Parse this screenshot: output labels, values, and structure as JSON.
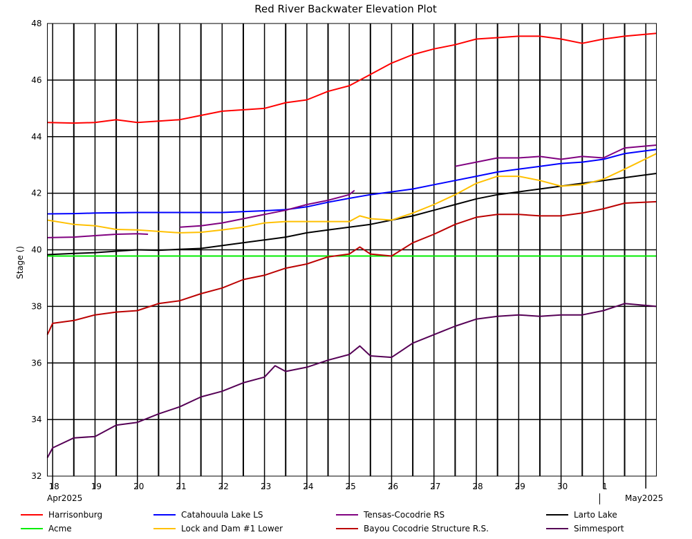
{
  "chart_data": {
    "type": "line",
    "title": "Red River Backwater Elevation Plot",
    "xlabel": "",
    "ylabel": "Stage ()",
    "ylim": [
      32,
      48
    ],
    "yticks": [
      32,
      34,
      36,
      38,
      40,
      42,
      44,
      46,
      48
    ],
    "xlim": [
      "2025-04-17T21:00",
      "2025-05-02T06:00"
    ],
    "x_day_ticks": [
      "18",
      "19",
      "20",
      "21",
      "22",
      "23",
      "24",
      "25",
      "26",
      "27",
      "28",
      "29",
      "30",
      "1"
    ],
    "x_month_labels": [
      "Apr2025",
      "May2025"
    ],
    "grid": true,
    "legend_position": "bottom",
    "series": [
      {
        "name": "Harrisonburg",
        "color": "#ff0000",
        "x": [
          "2025-04-17T21:00",
          "2025-04-18T12:00",
          "2025-04-19T00:00",
          "2025-04-19T12:00",
          "2025-04-20T00:00",
          "2025-04-20T12:00",
          "2025-04-21T00:00",
          "2025-04-21T12:00",
          "2025-04-22T00:00",
          "2025-04-22T12:00",
          "2025-04-23T00:00",
          "2025-04-23T12:00",
          "2025-04-24T00:00",
          "2025-04-24T12:00",
          "2025-04-25T00:00",
          "2025-04-25T12:00",
          "2025-04-26T00:00",
          "2025-04-26T12:00",
          "2025-04-27T00:00",
          "2025-04-27T12:00",
          "2025-04-28T00:00",
          "2025-04-28T12:00",
          "2025-04-29T00:00",
          "2025-04-29T12:00",
          "2025-04-30T00:00",
          "2025-04-30T12:00",
          "2025-05-01T00:00",
          "2025-05-01T12:00",
          "2025-05-02T06:00"
        ],
        "y": [
          44.5,
          44.48,
          44.5,
          44.6,
          44.5,
          44.55,
          44.6,
          44.75,
          44.9,
          44.95,
          45.0,
          45.2,
          45.3,
          45.6,
          45.8,
          46.2,
          46.6,
          46.9,
          47.1,
          47.25,
          47.45,
          47.5,
          47.55,
          47.55,
          47.45,
          47.3,
          47.45,
          47.55,
          47.65
        ]
      },
      {
        "name": "Catahouula Lake LS",
        "color": "#0000ff",
        "x": [
          "2025-04-17T21:00",
          "2025-04-18T12:00",
          "2025-04-19T00:00",
          "2025-04-20T00:00",
          "2025-04-21T00:00",
          "2025-04-22T00:00",
          "2025-04-22T12:00",
          "2025-04-23T00:00",
          "2025-04-23T12:00",
          "2025-04-24T00:00",
          "2025-04-24T12:00",
          "2025-04-25T00:00",
          "2025-04-25T12:00",
          "2025-04-26T00:00",
          "2025-04-26T12:00",
          "2025-04-27T00:00",
          "2025-04-27T12:00",
          "2025-04-28T00:00",
          "2025-04-28T12:00",
          "2025-04-29T00:00",
          "2025-04-29T12:00",
          "2025-04-30T00:00",
          "2025-04-30T12:00",
          "2025-05-01T00:00",
          "2025-05-01T12:00",
          "2025-05-02T06:00"
        ],
        "y": [
          41.27,
          41.28,
          41.3,
          41.32,
          41.32,
          41.32,
          41.35,
          41.38,
          41.42,
          41.52,
          41.68,
          41.82,
          41.95,
          42.05,
          42.15,
          42.3,
          42.45,
          42.6,
          42.75,
          42.85,
          42.95,
          43.05,
          43.1,
          43.2,
          43.4,
          43.55
        ]
      },
      {
        "name": "Tensas-Cocodrie RS",
        "color": "#800080",
        "note_segments": true,
        "segments": [
          {
            "x": [
              "2025-04-17T21:00",
              "2025-04-18T12:00",
              "2025-04-19T00:00",
              "2025-04-19T12:00",
              "2025-04-20T00:00",
              "2025-04-20T06:00"
            ],
            "y": [
              40.43,
              40.45,
              40.5,
              40.55,
              40.57,
              40.55
            ]
          },
          {
            "x": [
              "2025-04-21T00:00",
              "2025-04-21T12:00",
              "2025-04-22T00:00",
              "2025-04-22T12:00",
              "2025-04-23T00:00",
              "2025-04-23T12:00",
              "2025-04-24T00:00",
              "2025-04-24T12:00",
              "2025-04-25T00:00",
              "2025-04-25T03:00"
            ],
            "y": [
              40.8,
              40.85,
              40.95,
              41.1,
              41.25,
              41.4,
              41.6,
              41.75,
              41.95,
              42.1
            ]
          },
          {
            "x": [
              "2025-04-27T12:00",
              "2025-04-28T00:00",
              "2025-04-28T12:00",
              "2025-04-29T00:00",
              "2025-04-29T12:00",
              "2025-04-30T00:00",
              "2025-04-30T12:00",
              "2025-05-01T00:00",
              "2025-05-01T12:00",
              "2025-05-02T06:00"
            ],
            "y": [
              42.95,
              43.1,
              43.25,
              43.25,
              43.3,
              43.2,
              43.3,
              43.25,
              43.6,
              43.7
            ]
          }
        ]
      },
      {
        "name": "Larto Lake",
        "color": "#000000",
        "x": [
          "2025-04-17T21:00",
          "2025-04-18T12:00",
          "2025-04-19T00:00",
          "2025-04-19T12:00",
          "2025-04-20T00:00",
          "2025-04-20T12:00",
          "2025-04-21T00:00",
          "2025-04-21T12:00",
          "2025-04-22T00:00",
          "2025-04-22T12:00",
          "2025-04-23T00:00",
          "2025-04-23T12:00",
          "2025-04-24T00:00",
          "2025-04-24T12:00",
          "2025-04-25T00:00",
          "2025-04-25T12:00",
          "2025-04-26T00:00",
          "2025-04-26T12:00",
          "2025-04-27T00:00",
          "2025-04-27T12:00",
          "2025-04-28T00:00",
          "2025-04-28T12:00",
          "2025-04-29T00:00",
          "2025-04-29T12:00",
          "2025-04-30T00:00",
          "2025-04-30T12:00",
          "2025-05-01T00:00",
          "2025-05-01T12:00",
          "2025-05-02T06:00"
        ],
        "y": [
          39.83,
          39.87,
          39.9,
          39.95,
          40.0,
          39.98,
          40.02,
          40.05,
          40.15,
          40.25,
          40.35,
          40.45,
          40.6,
          40.7,
          40.8,
          40.9,
          41.05,
          41.2,
          41.4,
          41.6,
          41.8,
          41.95,
          42.05,
          42.15,
          42.25,
          42.35,
          42.45,
          42.55,
          42.7
        ]
      },
      {
        "name": "Acme",
        "color": "#00ee00",
        "x": [
          "2025-04-17T21:00",
          "2025-05-02T06:00"
        ],
        "y": [
          39.78,
          39.78
        ]
      },
      {
        "name": "Lock and Dam #1 Lower",
        "color": "#ffc000",
        "x": [
          "2025-04-17T21:00",
          "2025-04-18T12:00",
          "2025-04-19T00:00",
          "2025-04-19T12:00",
          "2025-04-20T00:00",
          "2025-04-20T12:00",
          "2025-04-21T00:00",
          "2025-04-21T12:00",
          "2025-04-22T00:00",
          "2025-04-22T12:00",
          "2025-04-23T00:00",
          "2025-04-23T12:00",
          "2025-04-24T00:00",
          "2025-04-24T12:00",
          "2025-04-25T00:00",
          "2025-04-25T06:00",
          "2025-04-25T12:00",
          "2025-04-26T00:00",
          "2025-04-26T12:00",
          "2025-04-27T00:00",
          "2025-04-27T12:00",
          "2025-04-28T00:00",
          "2025-04-28T12:00",
          "2025-04-29T00:00",
          "2025-04-29T12:00",
          "2025-04-30T00:00",
          "2025-04-30T12:00",
          "2025-05-01T00:00",
          "2025-05-01T12:00",
          "2025-05-02T06:00"
        ],
        "y": [
          41.05,
          40.9,
          40.85,
          40.72,
          40.7,
          40.65,
          40.6,
          40.62,
          40.7,
          40.8,
          40.95,
          41.0,
          41.0,
          41.0,
          41.0,
          41.2,
          41.1,
          41.05,
          41.3,
          41.6,
          41.95,
          42.35,
          42.6,
          42.6,
          42.45,
          42.25,
          42.3,
          42.5,
          42.85,
          43.4
        ]
      },
      {
        "name": "Bayou Cocodrie Structure R.S.",
        "color": "#bb0000",
        "x": [
          "2025-04-17T21:00",
          "2025-04-18T00:00",
          "2025-04-18T12:00",
          "2025-04-19T00:00",
          "2025-04-19T12:00",
          "2025-04-20T00:00",
          "2025-04-20T12:00",
          "2025-04-21T00:00",
          "2025-04-21T12:00",
          "2025-04-22T00:00",
          "2025-04-22T12:00",
          "2025-04-23T00:00",
          "2025-04-23T12:00",
          "2025-04-24T00:00",
          "2025-04-24T12:00",
          "2025-04-25T00:00",
          "2025-04-25T06:00",
          "2025-04-25T12:00",
          "2025-04-26T00:00",
          "2025-04-26T12:00",
          "2025-04-27T00:00",
          "2025-04-27T12:00",
          "2025-04-28T00:00",
          "2025-04-28T12:00",
          "2025-04-29T00:00",
          "2025-04-29T12:00",
          "2025-04-30T00:00",
          "2025-04-30T12:00",
          "2025-05-01T00:00",
          "2025-05-01T12:00",
          "2025-05-02T06:00"
        ],
        "y": [
          37.0,
          37.4,
          37.5,
          37.7,
          37.8,
          37.85,
          38.1,
          38.2,
          38.45,
          38.65,
          38.95,
          39.1,
          39.35,
          39.5,
          39.75,
          39.85,
          40.1,
          39.85,
          39.78,
          40.25,
          40.55,
          40.9,
          41.15,
          41.25,
          41.25,
          41.2,
          41.2,
          41.3,
          41.45,
          41.65,
          41.7
        ]
      },
      {
        "name": "Simmesport",
        "color": "#550055",
        "x": [
          "2025-04-17T21:00",
          "2025-04-18T00:00",
          "2025-04-18T12:00",
          "2025-04-19T00:00",
          "2025-04-19T12:00",
          "2025-04-20T00:00",
          "2025-04-20T12:00",
          "2025-04-21T00:00",
          "2025-04-21T12:00",
          "2025-04-22T00:00",
          "2025-04-22T12:00",
          "2025-04-23T00:00",
          "2025-04-23T06:00",
          "2025-04-23T12:00",
          "2025-04-24T00:00",
          "2025-04-24T12:00",
          "2025-04-25T00:00",
          "2025-04-25T06:00",
          "2025-04-25T12:00",
          "2025-04-26T00:00",
          "2025-04-26T12:00",
          "2025-04-27T00:00",
          "2025-04-27T12:00",
          "2025-04-28T00:00",
          "2025-04-28T12:00",
          "2025-04-29T00:00",
          "2025-04-29T12:00",
          "2025-04-30T00:00",
          "2025-04-30T12:00",
          "2025-05-01T00:00",
          "2025-05-01T12:00",
          "2025-05-02T06:00"
        ],
        "y": [
          32.65,
          33.0,
          33.35,
          33.4,
          33.8,
          33.9,
          34.2,
          34.45,
          34.8,
          35.0,
          35.3,
          35.5,
          35.9,
          35.7,
          35.85,
          36.1,
          36.3,
          36.6,
          36.25,
          36.2,
          36.7,
          37.0,
          37.3,
          37.55,
          37.65,
          37.7,
          37.65,
          37.7,
          37.7,
          37.85,
          38.1,
          38.0
        ]
      }
    ]
  }
}
